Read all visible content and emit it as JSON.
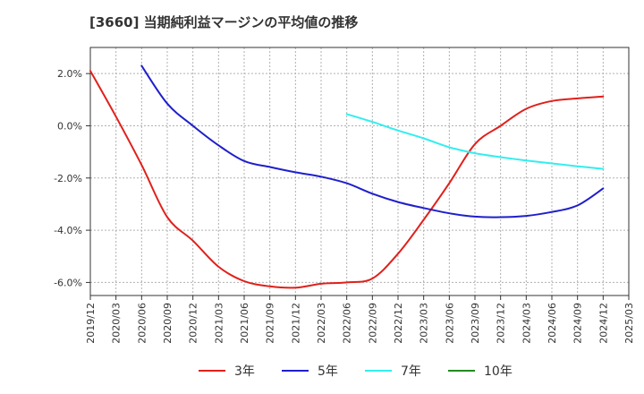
{
  "chart_data": {
    "type": "line",
    "title": "[3660]  当期純利益マージンの平均値の推移",
    "xlabel": "",
    "ylabel": "",
    "ylim": [
      -6.5,
      3.0
    ],
    "grid": true,
    "legend_position": "bottom",
    "y_ticks": [
      {
        "value": 2,
        "label": "2.0%"
      },
      {
        "value": 0,
        "label": "0.0%"
      },
      {
        "value": -2,
        "label": "-2.0%"
      },
      {
        "value": -4,
        "label": "-4.0%"
      },
      {
        "value": -6,
        "label": "-6.0%"
      }
    ],
    "categories": [
      "2019/12",
      "2020/03",
      "2020/06",
      "2020/09",
      "2020/12",
      "2021/03",
      "2021/06",
      "2021/09",
      "2021/12",
      "2022/03",
      "2022/06",
      "2022/09",
      "2022/12",
      "2023/03",
      "2023/06",
      "2023/09",
      "2023/12",
      "2024/03",
      "2024/06",
      "2024/09",
      "2024/12",
      "2025/03"
    ],
    "series": [
      {
        "name": "3年",
        "color": "#e0201b",
        "values": [
          2.1,
          0.35,
          -1.5,
          -3.5,
          -4.4,
          -5.4,
          -5.95,
          -6.15,
          -6.2,
          -6.05,
          -6.0,
          -5.85,
          -4.9,
          -3.6,
          -2.2,
          -0.7,
          0.0,
          0.65,
          0.95,
          1.05,
          1.12,
          null
        ]
      },
      {
        "name": "5年",
        "color": "#1f1fcc",
        "values": [
          null,
          null,
          2.3,
          0.85,
          0.0,
          -0.75,
          -1.35,
          -1.58,
          -1.78,
          -1.95,
          -2.2,
          -2.6,
          -2.92,
          -3.15,
          -3.35,
          -3.48,
          -3.5,
          -3.45,
          -3.3,
          -3.05,
          -2.4,
          null
        ]
      },
      {
        "name": "7年",
        "color": "#33eeee",
        "values": [
          null,
          null,
          null,
          null,
          null,
          null,
          null,
          null,
          null,
          null,
          0.45,
          0.15,
          -0.18,
          -0.48,
          -0.82,
          -1.05,
          -1.2,
          -1.33,
          -1.44,
          -1.55,
          -1.65,
          null
        ]
      },
      {
        "name": "10年",
        "color": "#228b22",
        "values": [
          null,
          null,
          null,
          null,
          null,
          null,
          null,
          null,
          null,
          null,
          null,
          null,
          null,
          null,
          null,
          null,
          null,
          null,
          null,
          null,
          null,
          null
        ]
      }
    ]
  }
}
